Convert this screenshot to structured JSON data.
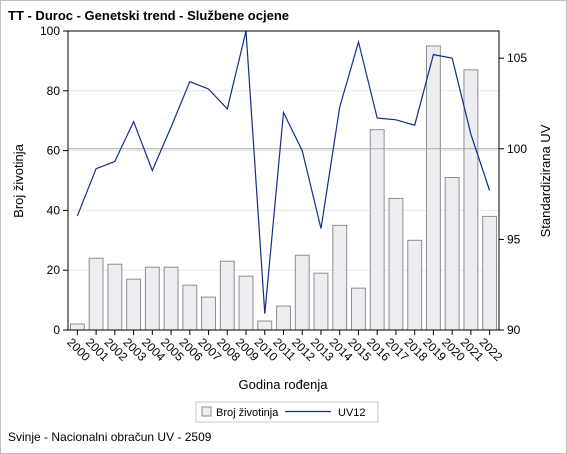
{
  "page": {
    "title": "TT - Duroc - Genetski trend - Službene ocjene",
    "footnote": "Svinje - Nacionalni obračun UV - 2509"
  },
  "colors": {
    "bar_fill": "#eceef2",
    "bar_stroke": "#8e8e8e",
    "line": "#0f2f8c",
    "ref_line": "#a8a8a8",
    "grid": "#e6e6e6",
    "axis": "#000000"
  },
  "chart_data": {
    "type": "bar",
    "title": "",
    "xlabel": "Godina rođenja",
    "ylabel": "Broj životinja",
    "y2label": "Standardizirana UV",
    "categories": [
      "2000",
      "2001",
      "2002",
      "2003",
      "2004",
      "2005",
      "2006",
      "2007",
      "2008",
      "2009",
      "2010",
      "2011",
      "2012",
      "2013",
      "2014",
      "2015",
      "2016",
      "2017",
      "2018",
      "2019",
      "2020",
      "2021",
      "2022"
    ],
    "ylim": [
      0,
      100
    ],
    "yticks": [
      0,
      20,
      40,
      60,
      80,
      100
    ],
    "y2lim": [
      90,
      106.5
    ],
    "y2ticks": [
      90,
      95,
      100,
      105
    ],
    "y2_reference": 100,
    "grid": "horizontal",
    "legend_position": "bottom",
    "series": [
      {
        "name": "Broj životinja",
        "type": "bar",
        "axis": "left",
        "values": [
          2,
          24,
          22,
          17,
          21,
          21,
          15,
          11,
          23,
          18,
          3,
          8,
          25,
          19,
          35,
          14,
          67,
          44,
          30,
          95,
          51,
          87,
          38
        ]
      },
      {
        "name": "UV12",
        "type": "line",
        "axis": "right",
        "values": [
          96.3,
          98.9,
          99.3,
          101.5,
          98.8,
          101.2,
          103.7,
          103.3,
          102.2,
          106.5,
          90.9,
          102.0,
          99.9,
          95.6,
          102.3,
          105.9,
          101.7,
          101.6,
          101.3,
          105.2,
          105.0,
          100.8,
          97.7
        ]
      }
    ]
  }
}
